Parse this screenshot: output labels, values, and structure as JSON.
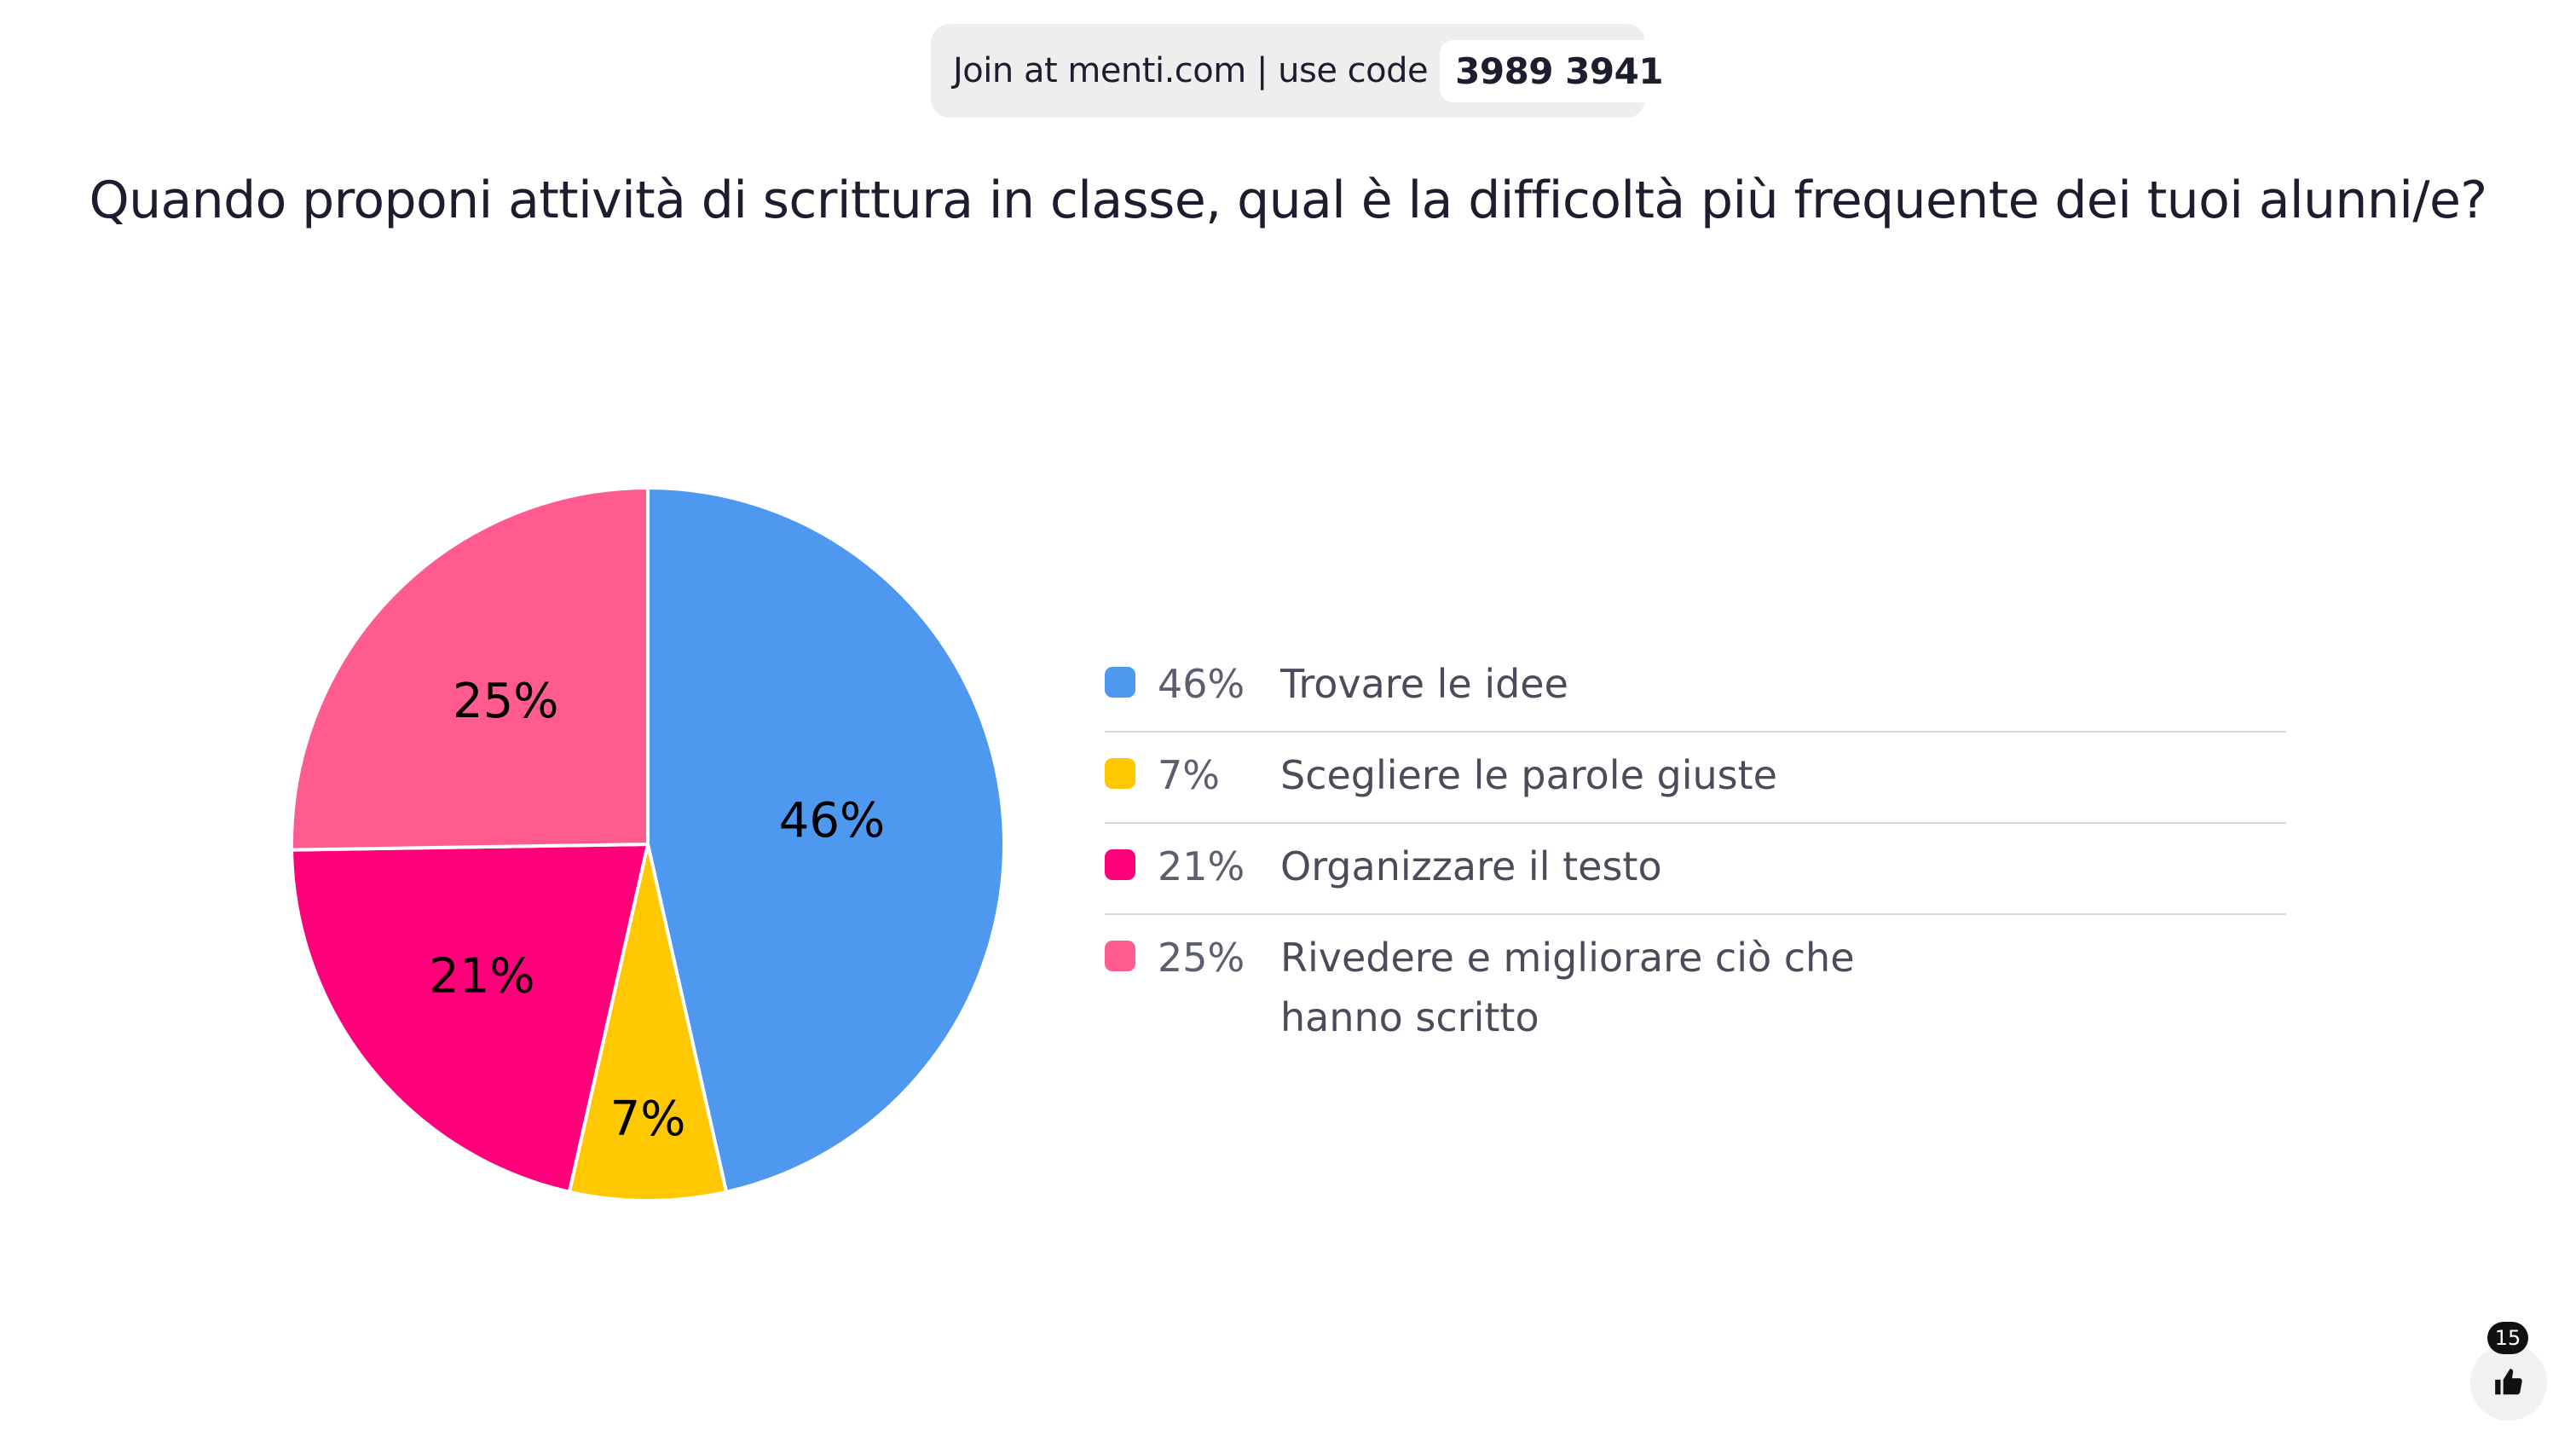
{
  "join_bar": {
    "text": "Join at menti.com | use code",
    "code": "3989 3941"
  },
  "question": "Quando proponi attività di scrittura in classe, qual è la difficoltà più frequente dei tuoi alunni/e?",
  "chart_data": {
    "type": "pie",
    "slices": [
      {
        "label": "Trovare le idee",
        "value": 46,
        "display": "46%",
        "color": "#4f98f0"
      },
      {
        "label": "Scegliere le parole giuste",
        "value": 7,
        "display": "7%",
        "color": "#ffc800"
      },
      {
        "label": "Organizzare il testo",
        "value": 21,
        "display": "21%",
        "color": "#ff007a"
      },
      {
        "label": "Rivedere e migliorare ciò che hanno scritto",
        "value": 25,
        "display": "25%",
        "color": "#ff5b8f"
      }
    ],
    "legend_position": "right"
  },
  "reactions": {
    "count": "15",
    "icon": "thumbs-up-icon"
  }
}
